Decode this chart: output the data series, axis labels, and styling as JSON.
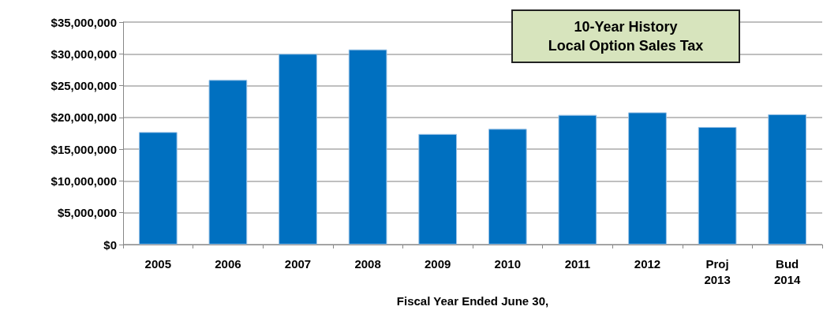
{
  "chart_data": {
    "type": "bar",
    "title": "10-Year History\nLocal Option Sales Tax",
    "xlabel": "Fiscal Year Ended June 30,",
    "categories": [
      "2005",
      "2006",
      "2007",
      "2008",
      "2009",
      "2010",
      "2011",
      "2012",
      "Proj\n2013",
      "Bud\n2014"
    ],
    "values": [
      17700000,
      25900000,
      30000000,
      30700000,
      17400000,
      18200000,
      20400000,
      20800000,
      18500000,
      20500000
    ],
    "color": "#0070c0",
    "ylim": [
      0,
      35000000
    ],
    "yticks": [
      {
        "value": 0,
        "label": "$0"
      },
      {
        "value": 5000000,
        "label": "$5,000,000"
      },
      {
        "value": 10000000,
        "label": "$10,000,000"
      },
      {
        "value": 15000000,
        "label": "$15,000,000"
      },
      {
        "value": 20000000,
        "label": "$20,000,000"
      },
      {
        "value": 25000000,
        "label": "$25,000,000"
      },
      {
        "value": 30000000,
        "label": "$30,000,000"
      },
      {
        "value": 35000000,
        "label": "$35,000,000"
      }
    ],
    "grid": true
  }
}
